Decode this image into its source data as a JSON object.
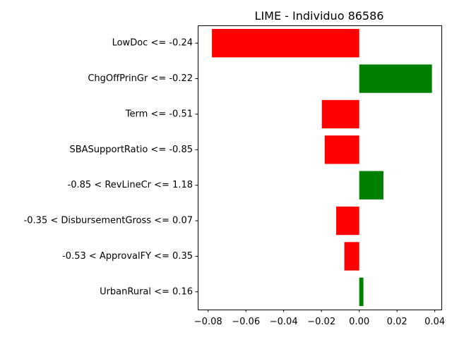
{
  "chart_data": {
    "type": "bar",
    "orientation": "horizontal",
    "title": "LIME - Individuo 86586",
    "xlabel": "",
    "ylabel": "",
    "xlim": [
      -0.0855,
      0.0435
    ],
    "xticks": [
      -0.08,
      -0.06,
      -0.04,
      -0.02,
      0.0,
      0.02,
      0.04
    ],
    "xtick_labels": [
      "−0.08",
      "−0.06",
      "−0.04",
      "−0.02",
      "0.00",
      "0.02",
      "0.04"
    ],
    "categories": [
      "LowDoc <= -0.24",
      "ChgOffPrinGr <= -0.22",
      "Term <= -0.51",
      "SBASupportRatio <= -0.85",
      "-0.85 < RevLineCr <= 1.18",
      "-0.35 < DisbursementGross <= 0.07",
      "-0.53 < ApprovalFY <= 0.35",
      "UrbanRural <= 0.16"
    ],
    "values": [
      -0.078,
      0.0385,
      -0.0198,
      -0.0183,
      0.0128,
      -0.0122,
      -0.0079,
      0.0022
    ],
    "colors": {
      "positive": "#008000",
      "negative": "#ff0000"
    },
    "grid": false,
    "legend": "none"
  }
}
